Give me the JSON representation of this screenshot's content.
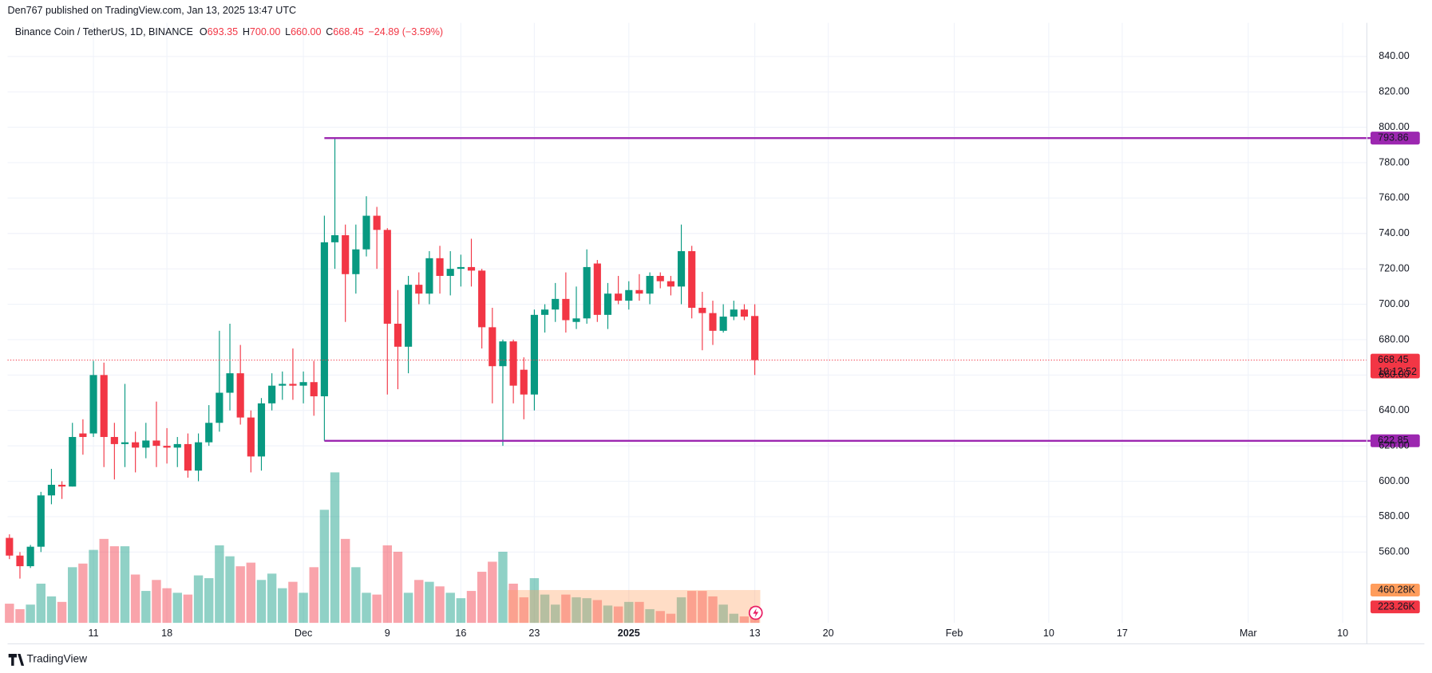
{
  "header": {
    "publisher": "Den767 published on TradingView.com, Jan 13, 2025 13:47 UTC"
  },
  "chart_data": {
    "type": "candlestick",
    "title": "Binance Coin / TetherUS, 1D, BINANCE",
    "legend": [
      {
        "key": "O",
        "value": "693.35"
      },
      {
        "key": "H",
        "value": "700.00"
      },
      {
        "key": "L",
        "value": "660.00"
      },
      {
        "key": "C",
        "value": "668.45"
      }
    ],
    "change": "−24.89 (−3.59%)",
    "categories": [
      null,
      null,
      null,
      null,
      null,
      null,
      null,
      null,
      "11",
      null,
      null,
      null,
      null,
      null,
      null,
      "18",
      null,
      null,
      null,
      null,
      null,
      null,
      null,
      null,
      null,
      null,
      null,
      null,
      "Dec",
      null,
      null,
      null,
      null,
      null,
      null,
      null,
      "9",
      null,
      null,
      null,
      null,
      null,
      null,
      "16",
      null,
      null,
      null,
      null,
      null,
      null,
      "23",
      null,
      null,
      null,
      null,
      null,
      null,
      null,
      null,
      "2025",
      null,
      null,
      null,
      null,
      null,
      null,
      null,
      null,
      null,
      null,
      null,
      "13",
      null,
      null,
      null,
      null,
      null,
      null,
      "20",
      null,
      null,
      null,
      null,
      null,
      null,
      null,
      null,
      null,
      null,
      null,
      "Feb",
      null,
      null,
      null,
      null,
      null,
      null,
      null,
      null,
      "10",
      null,
      null,
      null,
      null,
      null,
      null,
      "17",
      null,
      null,
      null,
      null,
      null,
      null,
      null,
      null,
      null,
      null,
      null,
      "Mar",
      null,
      null,
      null,
      null,
      null,
      null,
      null,
      null,
      "10"
    ],
    "open": [
      568,
      558,
      552,
      563,
      592,
      598,
      597,
      627,
      627,
      660,
      625,
      621,
      622,
      619,
      623,
      620,
      619,
      621,
      606,
      622,
      633,
      650,
      661,
      636,
      614,
      644,
      654,
      655,
      654,
      656,
      648,
      735,
      739,
      717,
      731,
      750,
      742,
      689,
      676,
      711,
      706,
      726,
      716,
      720,
      721,
      719,
      687,
      665,
      679,
      663,
      649,
      694,
      697,
      703,
      690,
      692,
      723,
      694,
      706,
      702,
      708,
      706,
      716,
      713,
      710,
      730,
      698,
      695,
      685,
      693,
      697,
      693.35,
      null,
      null,
      null,
      null,
      null,
      null,
      null,
      null,
      null,
      null,
      null,
      null,
      null,
      null,
      null,
      null,
      null,
      null,
      null,
      null,
      null,
      null,
      null,
      null,
      null,
      null,
      null,
      null,
      null,
      null,
      null,
      null,
      null,
      null,
      null,
      null,
      null,
      null,
      null,
      null,
      null,
      null,
      null,
      null,
      null,
      null,
      null,
      null,
      null,
      null,
      null,
      null,
      null,
      null,
      null,
      null
    ],
    "high": [
      570,
      560,
      564,
      594,
      607,
      600,
      633,
      635,
      668,
      667,
      633,
      655,
      628,
      633,
      645,
      630,
      625,
      627,
      627,
      643,
      685,
      689,
      677,
      640,
      647,
      661,
      662,
      675,
      662,
      668,
      750,
      793.86,
      745,
      745,
      761,
      755,
      743,
      708,
      716,
      718,
      730,
      733,
      730,
      728,
      737,
      720,
      698,
      680,
      680,
      670,
      697,
      700,
      712,
      718,
      710,
      731,
      725,
      712,
      716,
      713,
      717,
      718,
      718,
      716,
      745,
      733,
      707,
      702,
      700,
      702,
      700,
      700,
      null,
      null,
      null,
      null,
      null,
      null,
      null,
      null,
      null,
      null,
      null,
      null,
      null,
      null,
      null,
      null,
      null,
      null,
      null,
      null,
      null,
      null,
      null,
      null,
      null,
      null,
      null,
      null,
      null,
      null,
      null,
      null,
      null,
      null,
      null,
      null,
      null,
      null,
      null,
      null,
      null,
      null,
      null,
      null,
      null,
      null,
      null,
      null,
      null,
      null,
      null,
      null,
      null,
      null,
      null,
      null
    ],
    "low": [
      556,
      545,
      551,
      560,
      587,
      590,
      597,
      615,
      625,
      608,
      601,
      608,
      605,
      613,
      608,
      610,
      608,
      602,
      600,
      620,
      628,
      640,
      632,
      605,
      606,
      640,
      646,
      646,
      644,
      637,
      622.85,
      720,
      690,
      706,
      727,
      720,
      649,
      652,
      661,
      700,
      700,
      706,
      705,
      710,
      710,
      675,
      644,
      620,
      644,
      635,
      640,
      684,
      690,
      684,
      686,
      689,
      690,
      686,
      700,
      697,
      702,
      700,
      709,
      705,
      700,
      692,
      674,
      677,
      684,
      691,
      691,
      660,
      null,
      null,
      null,
      null,
      null,
      null,
      null,
      null,
      null,
      null,
      null,
      null,
      null,
      null,
      null,
      null,
      null,
      null,
      null,
      null,
      null,
      null,
      null,
      null,
      null,
      null,
      null,
      null,
      null,
      null,
      null,
      null,
      null,
      null,
      null,
      null,
      null,
      null,
      null,
      null,
      null,
      null,
      null,
      null,
      null,
      null,
      null,
      null,
      null,
      null,
      null,
      null,
      null,
      null,
      null,
      null
    ],
    "close": [
      558,
      552,
      563,
      592,
      598,
      597,
      625,
      625,
      660,
      625,
      621,
      622,
      619,
      623,
      620,
      619,
      621,
      606,
      622,
      633,
      650,
      661,
      636,
      614,
      644,
      654,
      655,
      654,
      656,
      648,
      735,
      739,
      717,
      731,
      750,
      742,
      689,
      676,
      711,
      706,
      726,
      716,
      720,
      721,
      719,
      687,
      665,
      679,
      654,
      649,
      694,
      697,
      703,
      691,
      692,
      721,
      694,
      706,
      702,
      708,
      706,
      716,
      713,
      710,
      730,
      698,
      695,
      685,
      693,
      697,
      693,
      668.45,
      null,
      null,
      null,
      null,
      null,
      null,
      null,
      null,
      null,
      null,
      null,
      null,
      null,
      null,
      null,
      null,
      null,
      null,
      null,
      null,
      null,
      null,
      null,
      null,
      null,
      null,
      null,
      null,
      null,
      null,
      null,
      null,
      null,
      null,
      null,
      null,
      null,
      null,
      null,
      null,
      null,
      null,
      null,
      null,
      null,
      null,
      null,
      null,
      null,
      null,
      null,
      null,
      null,
      null,
      null,
      null
    ],
    "volume": {
      "values": [
        269,
        192,
        256,
        550,
        371,
        294,
        781,
        832,
        1024,
        1178,
        1075,
        1075,
        678,
        448,
        602,
        486,
        422,
        397,
        666,
        627,
        1088,
        934,
        794,
        845,
        602,
        691,
        486,
        576,
        422,
        781,
        1587,
        2112,
        1178,
        781,
        422,
        397,
        1088,
        998,
        422,
        602,
        576,
        512,
        422,
        346,
        448,
        717,
        858,
        998,
        550,
        358,
        627,
        397,
        256,
        397,
        358,
        346,
        320,
        243,
        230,
        294,
        294,
        192,
        166,
        128,
        358,
        448,
        448,
        371,
        256,
        128,
        90,
        223.26,
        null,
        null,
        null,
        null,
        null,
        null,
        null,
        null,
        null,
        null,
        null,
        null,
        null,
        null,
        null,
        null,
        null,
        null,
        null,
        null,
        null,
        null,
        null,
        null,
        null,
        null,
        null,
        null,
        null,
        null,
        null,
        null,
        null,
        null,
        null,
        null,
        null,
        null,
        null,
        null,
        null,
        null,
        null,
        null,
        null,
        null,
        null,
        null,
        null,
        null,
        null,
        null,
        null,
        null,
        null,
        null
      ],
      "last_label": "223.26K",
      "ma": 460.28,
      "ma_label": "460.28K"
    },
    "up_color": "#089981",
    "down_color": "#f23645",
    "levels": [
      793.86,
      622.85
    ],
    "level_color": "#9c27b0",
    "countdown": "10:12:52",
    "ylim": [
      520,
      859
    ],
    "yticks": [
      {
        "value": 560,
        "label": "560.00"
      },
      {
        "value": 580,
        "label": "580.00"
      },
      {
        "value": 600,
        "label": "600.00"
      },
      {
        "value": 620,
        "label": "620.00"
      },
      {
        "value": 640,
        "label": "640.00"
      },
      {
        "value": 660,
        "label": "660.00"
      },
      {
        "value": 680,
        "label": "680.00"
      },
      {
        "value": 700,
        "label": "700.00"
      },
      {
        "value": 720,
        "label": "720.00"
      },
      {
        "value": 740,
        "label": "740.00"
      },
      {
        "value": 760,
        "label": "760.00"
      },
      {
        "value": 780,
        "label": "780.00"
      },
      {
        "value": 800,
        "label": "800.00"
      },
      {
        "value": 820,
        "label": "820.00"
      },
      {
        "value": 840,
        "label": "840.00"
      }
    ],
    "grid": true
  },
  "footer": {
    "brand": "TradingView"
  }
}
